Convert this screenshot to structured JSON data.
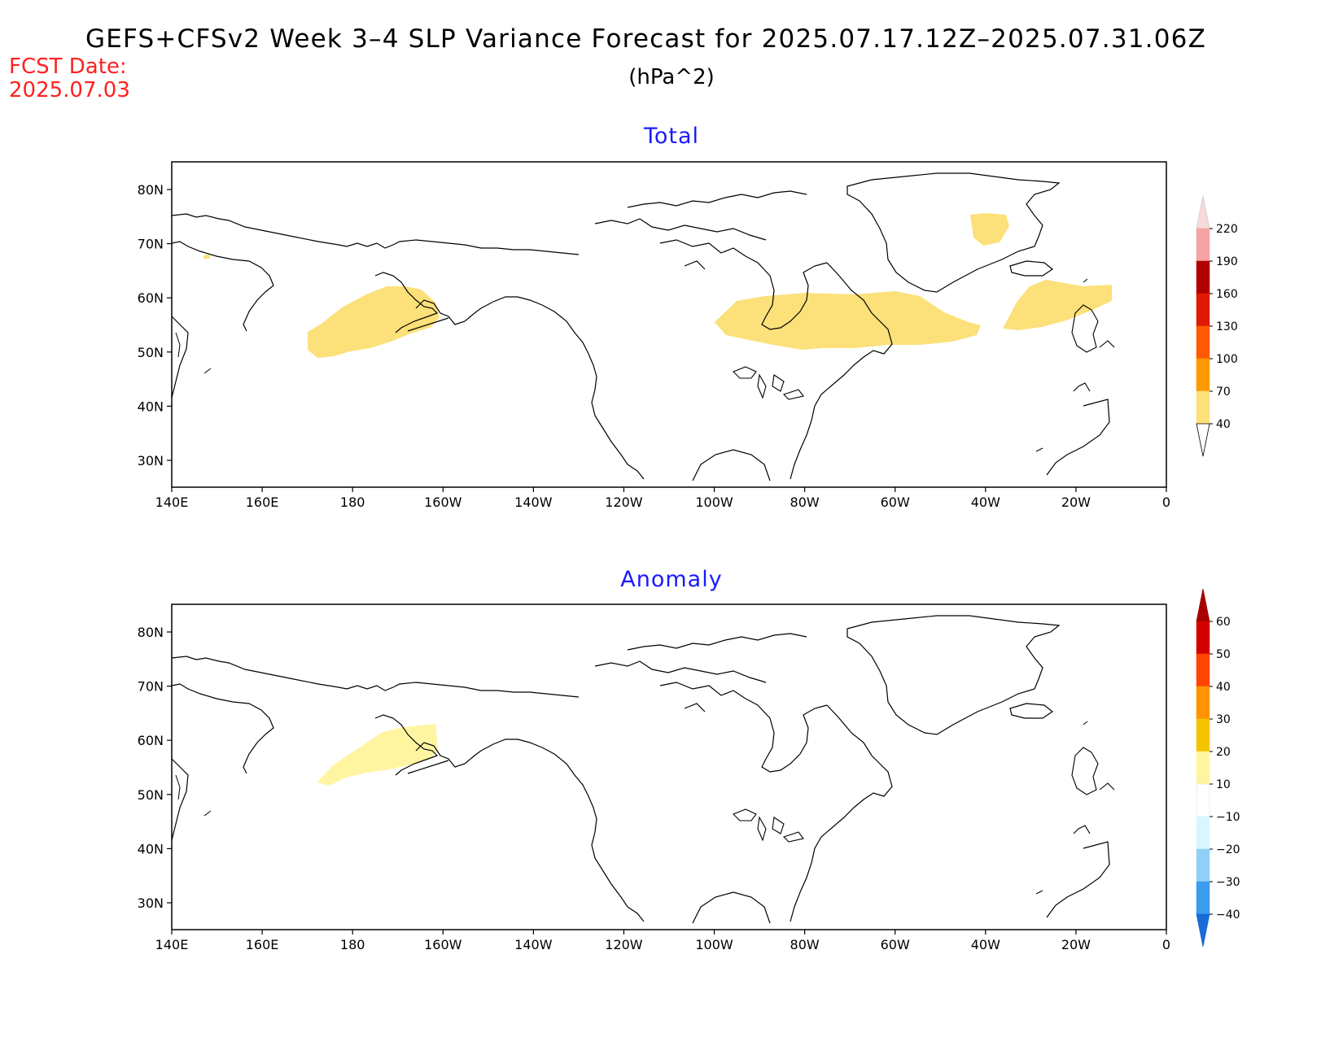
{
  "header": {
    "title": "GEFS+CFSv2 Week 3–4 SLP Variance Forecast for 2025.07.17.12Z–2025.07.31.06Z",
    "units": "(hPa^2)",
    "fcst_label": "FCST Date:",
    "fcst_date": "2025.07.03"
  },
  "axes": {
    "lon_labels": [
      "140E",
      "160E",
      "180",
      "160W",
      "140W",
      "120W",
      "100W",
      "80W",
      "60W",
      "40W",
      "20W",
      "0"
    ],
    "lat_labels": [
      "80N",
      "70N",
      "60N",
      "50N",
      "40N",
      "30N"
    ]
  },
  "panels": [
    {
      "title": "Total",
      "colorbar": {
        "labels": [
          "220",
          "190",
          "160",
          "130",
          "100",
          "70",
          "40"
        ],
        "colors": [
          "#f5a3a3",
          "#b00000",
          "#e01a00",
          "#ff5a00",
          "#ff9900",
          "#fce07a"
        ],
        "top_arrow": "#f9d9d9",
        "bottom_arrow": "#ffffff"
      }
    },
    {
      "title": "Anomaly",
      "colorbar": {
        "labels": [
          "60",
          "50",
          "40",
          "30",
          "20",
          "10",
          "−10",
          "−20",
          "−30",
          "−40"
        ],
        "colors": [
          "#d40000",
          "#ff4400",
          "#ff9400",
          "#f5c400",
          "#fff5a0",
          "#ffffff",
          "#d6f7ff",
          "#90d0f6",
          "#3b9cf0"
        ],
        "top_arrow": "#a80000",
        "bottom_arrow": "#1a6ad8"
      }
    }
  ]
}
